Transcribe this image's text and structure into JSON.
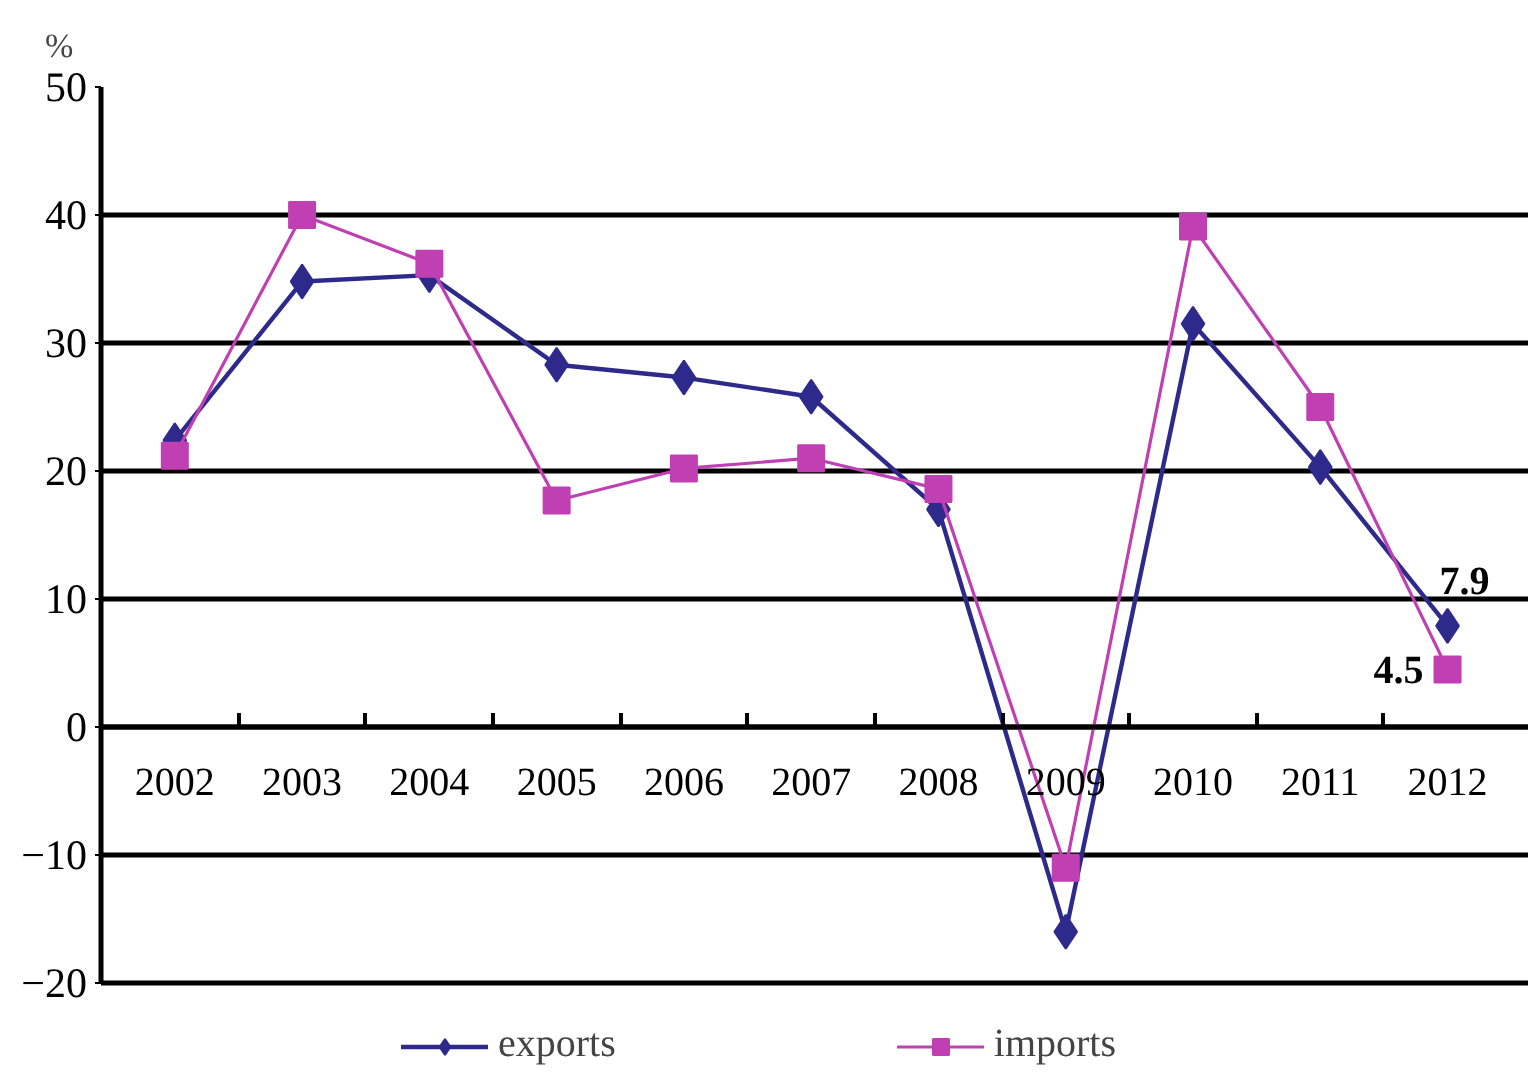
{
  "chart_data": {
    "type": "line",
    "ylabel": "%",
    "categories": [
      "2002",
      "2003",
      "2004",
      "2005",
      "2006",
      "2007",
      "2008",
      "2009",
      "2010",
      "2011",
      "2012"
    ],
    "ylim": [
      -20,
      50
    ],
    "yticks": [
      -20,
      -10,
      0,
      10,
      20,
      30,
      40,
      50
    ],
    "grid": "y",
    "legend": "bottom",
    "line_style": "solid",
    "series": [
      {
        "name": "exports",
        "color": "#2e2a8c",
        "marker": "diamond",
        "values": [
          22.4,
          34.8,
          35.3,
          28.3,
          27.3,
          25.8,
          17,
          -16,
          31.5,
          20.3,
          7.9
        ],
        "value_labels": [
          null,
          null,
          null,
          null,
          null,
          null,
          null,
          null,
          null,
          null,
          "7.9"
        ]
      },
      {
        "name": "imports",
        "color": "#c040b4",
        "marker": "square",
        "values": [
          21.2,
          40,
          36.2,
          17.7,
          20.2,
          21,
          18.6,
          -11,
          39.1,
          25,
          4.5
        ],
        "value_labels": [
          null,
          null,
          null,
          null,
          null,
          null,
          null,
          null,
          null,
          null,
          "4.5"
        ]
      }
    ]
  }
}
